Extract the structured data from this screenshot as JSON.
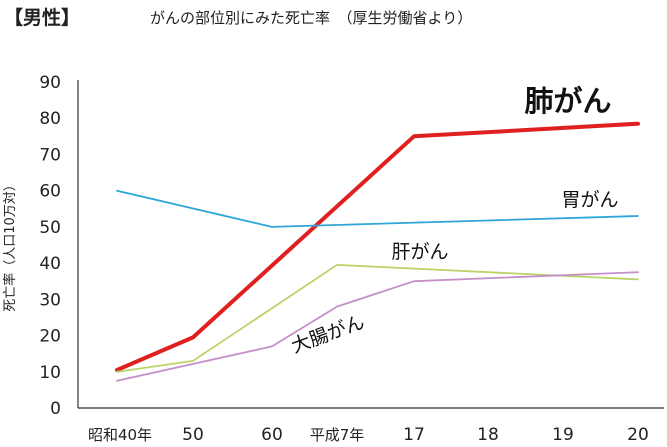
{
  "header": {
    "title_bold": "【男性】",
    "title_rest": "がんの部位別にみた死亡率　（厚生労働省より）"
  },
  "chart_data": {
    "type": "line",
    "title": "【男性】 がんの部位別にみた死亡率　（厚生労働省より）",
    "xlabel": "",
    "ylabel": "死亡率（人口10万対）",
    "categories": [
      "昭和40年",
      "50",
      "60",
      "平成7年",
      "17",
      "18",
      "19",
      "20"
    ],
    "ylim": [
      0,
      90
    ],
    "yticks": [
      0,
      10,
      20,
      30,
      40,
      50,
      60,
      70,
      80,
      90
    ],
    "grid": false,
    "legend": "inline labels",
    "series": [
      {
        "name": "肺がん",
        "color": "#e02020",
        "emphasis": true,
        "values": [
          10.5,
          19.5,
          null,
          null,
          75,
          null,
          null,
          78.5
        ]
      },
      {
        "name": "胃がん",
        "color": "#2ea6d8",
        "emphasis": false,
        "values": [
          60,
          null,
          50,
          null,
          null,
          null,
          null,
          53
        ]
      },
      {
        "name": "肝がん",
        "color": "#bcd36a",
        "emphasis": false,
        "values": [
          10,
          13,
          null,
          39.5,
          null,
          null,
          null,
          35.5
        ]
      },
      {
        "name": "大腸がん",
        "color": "#c68fca",
        "emphasis": false,
        "values": [
          7.5,
          null,
          17,
          28,
          35,
          null,
          null,
          37.5
        ]
      }
    ]
  }
}
